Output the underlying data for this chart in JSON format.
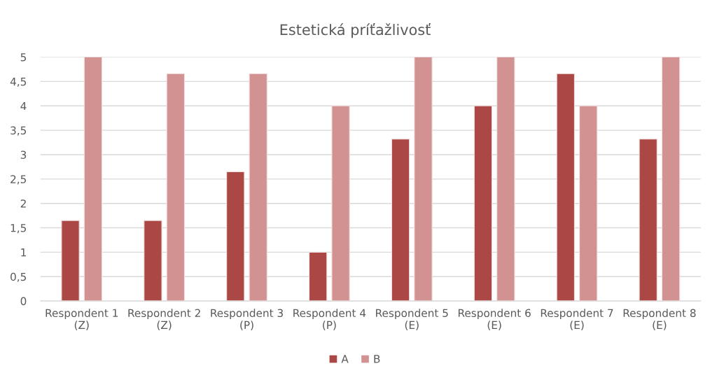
{
  "chart_data": {
    "type": "bar",
    "title": "Estetická príťažlivosť",
    "categories": [
      "Respondent 1\n(Z)",
      "Respondent 2\n(Z)",
      "Respondent 3\n(P)",
      "Respondent 4\n(P)",
      "Respondent 5\n(E)",
      "Respondent 6\n(E)",
      "Respondent 7\n(E)",
      "Respondent 8\n(E)"
    ],
    "series": [
      {
        "name": "A",
        "color": "#ab4745",
        "values": [
          1.65,
          1.65,
          2.65,
          1,
          3.32,
          4,
          4.66,
          3.32
        ]
      },
      {
        "name": "B",
        "color": "#d39292",
        "values": [
          5,
          4.66,
          4.66,
          4,
          5,
          5,
          4,
          5
        ]
      }
    ],
    "ylim": [
      0,
      5
    ],
    "yticks": [
      0,
      {
        "value": 0.5,
        "label": "0,5"
      },
      1,
      {
        "value": 1.5,
        "label": "1,5"
      },
      2,
      {
        "value": 2.5,
        "label": "2,5"
      },
      3,
      {
        "value": 3.5,
        "label": "3,5"
      },
      4,
      {
        "value": 4.5,
        "label": "4,5"
      },
      5
    ],
    "grid": "y",
    "legend": "bottom"
  }
}
